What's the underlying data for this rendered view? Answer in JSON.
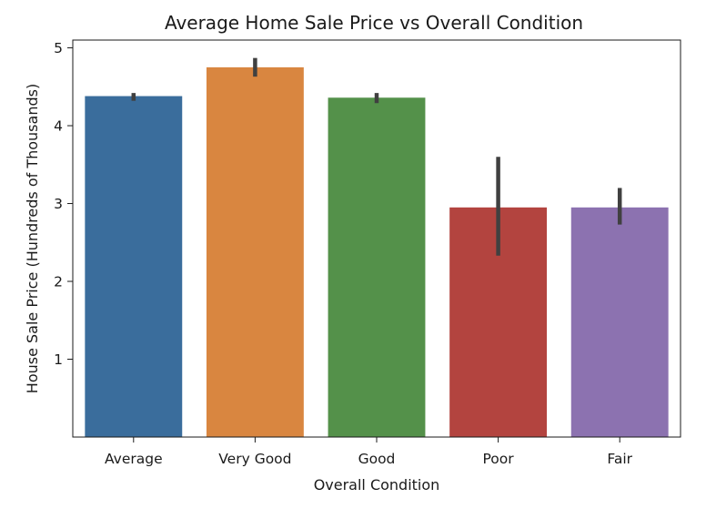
{
  "chart_data": {
    "type": "bar",
    "title": "Average Home Sale Price vs Overall Condition",
    "xlabel": "Overall Condition",
    "ylabel": "House Sale Price (Hundreds of Thousands)",
    "categories": [
      "Average",
      "Very Good",
      "Good",
      "Poor",
      "Fair"
    ],
    "values": [
      4.38,
      4.75,
      4.36,
      2.95,
      2.95
    ],
    "error_low": [
      4.32,
      4.63,
      4.29,
      2.33,
      2.73
    ],
    "error_high": [
      4.42,
      4.87,
      4.42,
      3.6,
      3.2
    ],
    "colors": [
      "#3a6d9c",
      "#d98640",
      "#54914a",
      "#b3443f",
      "#8c72b0"
    ],
    "error_bar_color": "#404040",
    "yticks": [
      1,
      2,
      3,
      4,
      5
    ],
    "ylim": [
      0,
      5.1
    ],
    "grid": false,
    "legend": "none"
  }
}
